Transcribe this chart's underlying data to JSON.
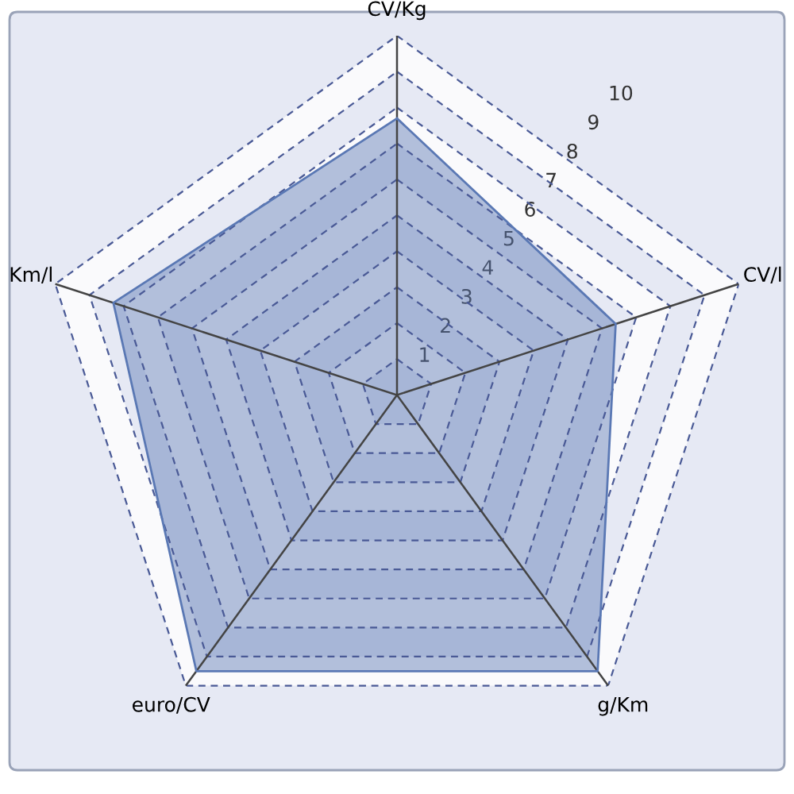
{
  "chart_data": {
    "type": "radar",
    "categories": [
      "CV/Kg",
      "CV/l",
      "g/Km",
      "euro/CV",
      "Km/l"
    ],
    "series": [
      {
        "color": "#5a78b4",
        "values": [
          7.7,
          6.4,
          9.5,
          9.5,
          8.3
        ]
      }
    ],
    "ylim": [
      0,
      10
    ],
    "yticks": [
      1,
      2,
      3,
      4,
      5,
      6,
      7,
      8,
      9,
      10
    ],
    "grid": true
  }
}
